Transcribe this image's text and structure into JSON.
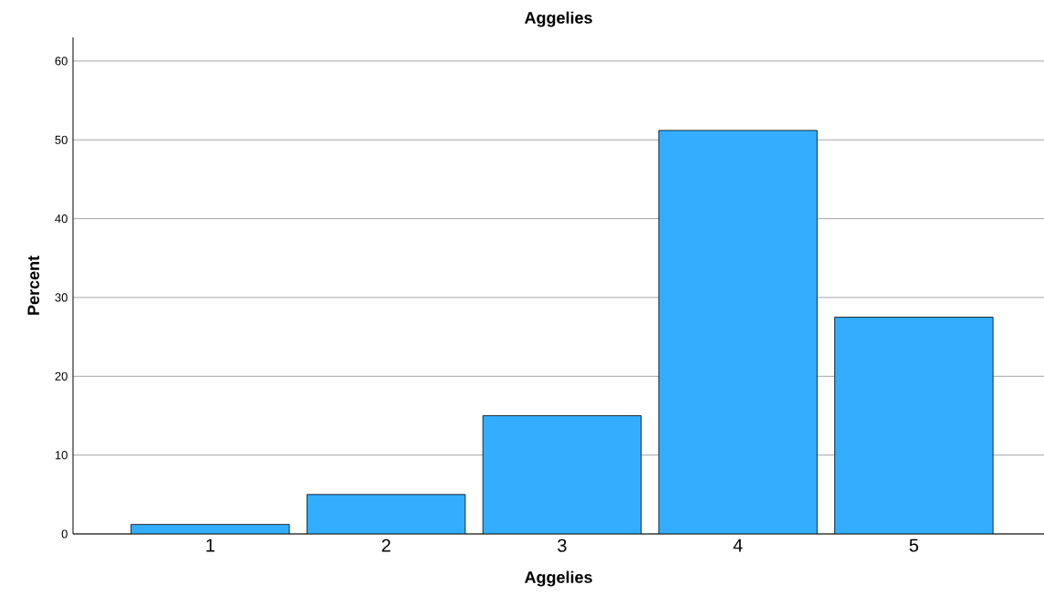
{
  "chart_data": {
    "type": "bar",
    "title": "Aggelies",
    "xlabel": "Aggelies",
    "ylabel": "Percent",
    "categories": [
      "1",
      "2",
      "3",
      "4",
      "5"
    ],
    "values": [
      1.2,
      5.0,
      15.0,
      51.2,
      27.5
    ],
    "color": "#33adff",
    "ylim": [
      0,
      63
    ],
    "yticks": [
      0,
      10,
      20,
      30,
      40,
      50,
      60
    ],
    "grid": "y"
  }
}
